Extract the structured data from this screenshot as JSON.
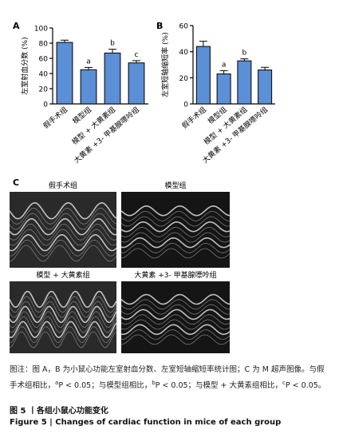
{
  "chart_data": [
    {
      "type": "bar",
      "panel": "A",
      "y_label": "左室射血分数 (%)",
      "categories": [
        "假手术组",
        "模型组",
        "模型 + 大黄素组",
        "大黄素 +3- 甲基腺嘌呤组"
      ],
      "values": [
        81,
        45,
        67,
        54
      ],
      "errors": [
        3,
        3,
        5,
        3
      ],
      "bar_labels": [
        null,
        "a",
        "b",
        "c"
      ],
      "color": "#5b8fd6",
      "ylim": [
        0,
        100
      ],
      "yticks": [
        0,
        20,
        40,
        60,
        80,
        100
      ]
    },
    {
      "type": "bar",
      "panel": "B",
      "y_label": "左室短轴缩短率 (%)",
      "categories": [
        "假手术组",
        "模型组",
        "模型 + 大黄素组",
        "大黄素 +3- 甲基腺嘌呤组"
      ],
      "values": [
        44,
        23,
        33,
        26
      ],
      "errors": [
        4,
        2.5,
        1.5,
        2
      ],
      "bar_labels": [
        null,
        "a",
        "b",
        null
      ],
      "color": "#5b8fd6",
      "ylim": [
        0,
        60
      ],
      "yticks": [
        0,
        20,
        40,
        60
      ]
    }
  ],
  "panel_c": {
    "label": "C",
    "images": [
      "假手术组",
      "模型组",
      "模型 + 大黄素组",
      "大黄素 +3- 甲基腺嘌呤组"
    ]
  },
  "caption": {
    "note": [
      {
        "text": "图注：图 A，B 为小鼠心功能左室射血分数、左室短轴缩短率统计图；C 为 M 超声图像。与假手术组相比，"
      },
      {
        "text": "a",
        "sup": true
      },
      {
        "text": "P < 0.05；与模型组相比，"
      },
      {
        "text": "b",
        "sup": true
      },
      {
        "text": "P < 0.05；与模型 + 大黄素组相比，"
      },
      {
        "text": "c",
        "sup": true
      },
      {
        "text": "P < 0.05。"
      }
    ],
    "title": "图 5 丨各组小鼠心功能变化",
    "title_en": "Figure 5  |  Changes of cardiac function in mice of each group"
  }
}
